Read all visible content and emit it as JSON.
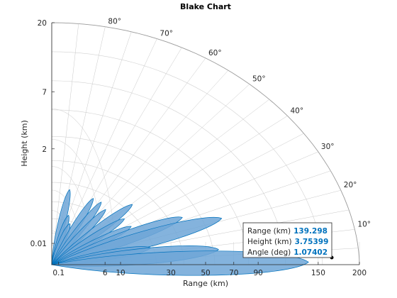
{
  "chart_data": {
    "type": "blake",
    "title": "Blake Chart",
    "xlabel": "Range (km)",
    "ylabel": "Height (km)",
    "x_ticks": [
      "0.1",
      "6",
      "10",
      "30",
      "50",
      "70",
      "90",
      "150",
      "200"
    ],
    "x_tick_values": [
      0.1,
      6,
      10,
      30,
      50,
      70,
      90,
      150,
      200
    ],
    "y_ticks": [
      "0.01",
      "2",
      "7",
      "20"
    ],
    "y_tick_values": [
      0.01,
      2,
      7,
      20
    ],
    "angle_ticks": [
      "10°",
      "20°",
      "30°",
      "40°",
      "50°",
      "60°",
      "70°",
      "80°"
    ],
    "angle_tick_values": [
      10,
      20,
      30,
      40,
      50,
      60,
      70,
      80
    ],
    "lobes": [
      {
        "elevation_deg": 79.4,
        "range_km": 20.0
      },
      {
        "elevation_deg": 75.0,
        "range_km": 9.0
      },
      {
        "elevation_deg": 71.0,
        "range_km": 6.5
      },
      {
        "elevation_deg": 64.0,
        "range_km": 19.0
      },
      {
        "elevation_deg": 58.5,
        "range_km": 19.0
      },
      {
        "elevation_deg": 53.0,
        "range_km": 17.0
      },
      {
        "elevation_deg": 44.5,
        "range_km": 27.0
      },
      {
        "elevation_deg": 40.0,
        "range_km": 19.0
      },
      {
        "elevation_deg": 33.0,
        "range_km": 19.0
      },
      {
        "elevation_deg": 26.5,
        "range_km": 45.0
      },
      {
        "elevation_deg": 21.0,
        "range_km": 70.0
      },
      {
        "elevation_deg": 14.0,
        "range_km": 22.0
      },
      {
        "elevation_deg": 8.0,
        "range_km": 60.0
      },
      {
        "elevation_deg": 1.07,
        "range_km": 139.3
      }
    ],
    "fill_color": "#6ea6d7",
    "edge_color": "#0072bd",
    "datatip": {
      "rows": [
        {
          "label": "Range (km)",
          "value": "139.298"
        },
        {
          "label": "Height (km)",
          "value": "3.75399"
        },
        {
          "label": "Angle (deg)",
          "value": "1.07402"
        }
      ]
    }
  }
}
